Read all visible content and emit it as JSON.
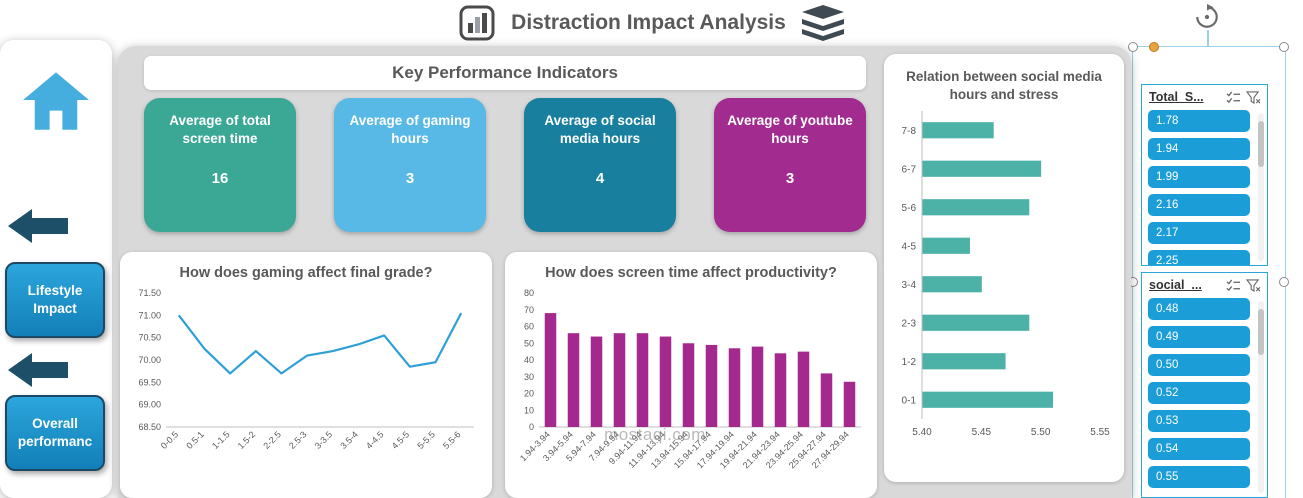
{
  "header": {
    "title": "Distraction Impact Analysis"
  },
  "sidebar": {
    "buttons": [
      {
        "label": "Lifestyle Impact"
      },
      {
        "label": "Overall performanc"
      }
    ]
  },
  "kpi": {
    "header": "Key Performance Indicators",
    "cards": [
      {
        "label": "Average of total screen time",
        "value": "16",
        "color": "#3BA795"
      },
      {
        "label": "Average of gaming hours",
        "value": "3",
        "color": "#58B8E6"
      },
      {
        "label": "Average of social media hours",
        "value": "4",
        "color": "#187F9F"
      },
      {
        "label": "Average of youtube hours",
        "value": "3",
        "color": "#A22B8F"
      }
    ]
  },
  "chart_data": [
    {
      "type": "line",
      "title": "How does gaming affect final grade?",
      "categories": [
        "0-0.5",
        "0.5-1",
        "1-1.5",
        "1.5-2",
        "2-2.5",
        "2.5-3",
        "3-3.5",
        "3.5-4",
        "4-4.5",
        "4.5-5",
        "5-5.5",
        "5.5-6"
      ],
      "values": [
        71.0,
        70.25,
        69.7,
        70.2,
        69.7,
        70.1,
        70.2,
        70.35,
        70.55,
        69.85,
        69.95,
        71.05
      ],
      "ylim": [
        68.5,
        71.5
      ],
      "ytick_step": 0.5,
      "tick_decimals": 2,
      "line_color": "#2F9FD8",
      "grid": false,
      "legend": "none"
    },
    {
      "type": "bar",
      "title": "How does screen time affect productivity?",
      "categories": [
        "1.94-3.94",
        "3.94-5.94",
        "5.94-7.94",
        "7.94-9.94",
        "9.94-11.94",
        "11.94-13.94",
        "13.94-15.94",
        "15.94-17.94",
        "17.94-19.94",
        "19.94-21.94",
        "21.94-23.94",
        "23.94-25.94",
        "25.94-27.94",
        "27.94-29.94"
      ],
      "values": [
        68,
        56,
        54,
        56,
        56,
        54,
        50,
        49,
        47,
        48,
        44,
        45,
        32,
        27
      ],
      "ylim": [
        0,
        80
      ],
      "ytick_step": 10,
      "tick_decimals": 0,
      "bar_color": "#A3298F",
      "grid": false,
      "legend": "none"
    },
    {
      "type": "barh",
      "title": "Relation between social media hours and stress",
      "categories": [
        "7-8",
        "6-7",
        "5-6",
        "4-5",
        "3-4",
        "2-3",
        "1-2",
        "0-1"
      ],
      "values": [
        5.46,
        5.5,
        5.49,
        5.44,
        5.45,
        5.49,
        5.47,
        5.51
      ],
      "xlim": [
        5.4,
        5.55
      ],
      "xticks": [
        5.4,
        5.45,
        5.5,
        5.55
      ],
      "tick_decimals": 2,
      "bar_color": "#4CB2A7",
      "grid": false,
      "legend": "none"
    }
  ],
  "slicers": [
    {
      "title": "Total_S...",
      "items": [
        "1.78",
        "1.94",
        "1.99",
        "2.16",
        "2.17",
        "2.25"
      ],
      "item_color": "#1B9ED8"
    },
    {
      "title": "social_...",
      "items": [
        "0.48",
        "0.49",
        "0.50",
        "0.52",
        "0.53",
        "0.54",
        "0.55"
      ],
      "item_color": "#1B9ED8"
    }
  ],
  "watermark": "mostaqi.com"
}
